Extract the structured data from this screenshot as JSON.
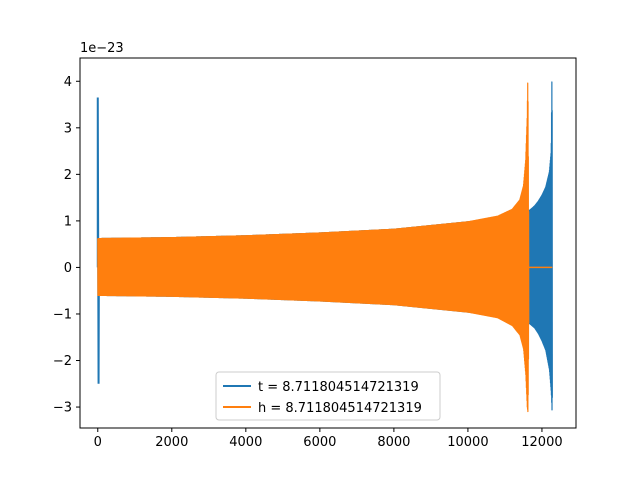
{
  "chart_data": {
    "type": "line",
    "offset_text": "1e−23",
    "xlim": [
      -480,
      12920
    ],
    "ylim": [
      -3.45,
      4.5
    ],
    "xticks": [
      0,
      2000,
      4000,
      6000,
      8000,
      10000,
      12000
    ],
    "xtick_labels": [
      "0",
      "2000",
      "4000",
      "6000",
      "8000",
      "10000",
      "12000"
    ],
    "yticks": [
      -3,
      -2,
      -1,
      0,
      1,
      2,
      3,
      4
    ],
    "ytick_labels": [
      "−3",
      "−2",
      "−1",
      "0",
      "1",
      "2",
      "3",
      "4"
    ],
    "legend_position": "bottom-center",
    "series": [
      {
        "name": "t = 8.711804514721319",
        "color": "#1f77b4",
        "kind": "oscillating-envelope",
        "spike": {
          "x": 0,
          "max": 3.65,
          "min": -2.5
        },
        "start_x": 20,
        "end_x": 12280,
        "envelope_x": [
          20,
          2000,
          4000,
          6000,
          8000,
          10000,
          11000,
          11500,
          11650,
          11700,
          11800,
          11900,
          12000,
          12100,
          12200,
          12250,
          12270,
          12280
        ],
        "envelope_upper": [
          0.62,
          0.64,
          0.68,
          0.74,
          0.82,
          0.98,
          1.08,
          1.18,
          1.22,
          1.25,
          1.32,
          1.42,
          1.55,
          1.72,
          2.05,
          2.5,
          4.15,
          2.85
        ],
        "envelope_lower": [
          -0.6,
          -0.62,
          -0.66,
          -0.72,
          -0.8,
          -0.96,
          -1.06,
          -1.16,
          -1.2,
          -1.23,
          -1.3,
          -1.42,
          -1.58,
          -1.78,
          -2.2,
          -2.7,
          -3.1,
          -2.6
        ]
      },
      {
        "name": "h = 8.711804514721319",
        "color": "#ff7f0e",
        "kind": "oscillating-envelope",
        "start_x": 0,
        "end_x": 11640,
        "envelope_x": [
          0,
          2000,
          4000,
          6000,
          8000,
          10000,
          10800,
          11200,
          11400,
          11500,
          11560,
          11600,
          11620,
          11640
        ],
        "envelope_upper": [
          0.62,
          0.64,
          0.68,
          0.74,
          0.82,
          0.98,
          1.1,
          1.25,
          1.45,
          1.75,
          2.3,
          3.2,
          4.15,
          1.2
        ],
        "envelope_lower": [
          -0.6,
          -0.62,
          -0.66,
          -0.72,
          -0.8,
          -0.96,
          -1.08,
          -1.25,
          -1.45,
          -1.75,
          -2.3,
          -3.0,
          -3.12,
          -1.2
        ],
        "tail": {
          "x_from": 11650,
          "x_to": 12280,
          "value": 0.0
        }
      }
    ]
  }
}
